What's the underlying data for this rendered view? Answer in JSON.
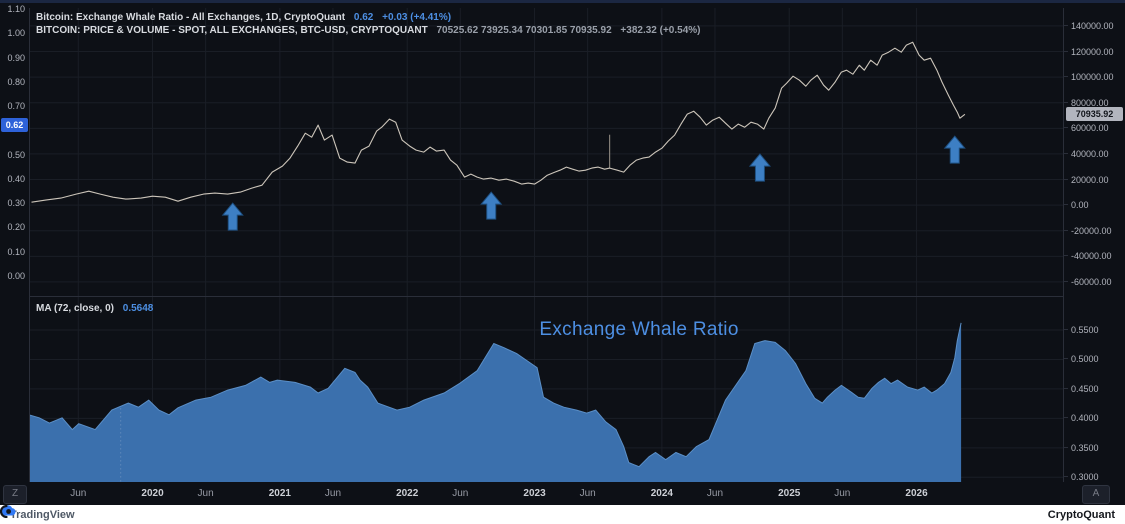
{
  "header": {
    "line1_symbol": "Bitcoin: Exchange Whale Ratio - All Exchanges, 1D, CryptoQuant",
    "line1_value": "0.62",
    "line1_change": "+0.03 (+4.41%)",
    "line2_symbol": "BITCOIN: PRICE & VOLUME - SPOT, ALL EXCHANGES, BTC-USD, CRYPTOQUANT",
    "line2_ohlc": "70525.62  73925.34  70301.85  70935.92",
    "line2_change": "+382.32 (+0.54%)"
  },
  "ma_legend": {
    "label": "MA (72, close, 0)",
    "value": "0.5648"
  },
  "pane2_title": "Exchange Whale Ratio",
  "badges": {
    "left_label": "0.62",
    "left_value": 0.62,
    "right_label": "70935.92",
    "right_value": 70935.92
  },
  "axes": {
    "left_ticks": [
      {
        "label": "1.10",
        "v": 1.1
      },
      {
        "label": "1.00",
        "v": 1.0
      },
      {
        "label": "0.90",
        "v": 0.9
      },
      {
        "label": "0.80",
        "v": 0.8
      },
      {
        "label": "0.70",
        "v": 0.7
      },
      {
        "label": "0.50",
        "v": 0.5
      },
      {
        "label": "0.40",
        "v": 0.4
      },
      {
        "label": "0.30",
        "v": 0.3
      },
      {
        "label": "0.20",
        "v": 0.2
      },
      {
        "label": "0.10",
        "v": 0.1
      },
      {
        "label": "0.00",
        "v": 0.0
      }
    ],
    "right_ticks_pane1": [
      {
        "label": "140000.00",
        "v": 140000
      },
      {
        "label": "120000.00",
        "v": 120000
      },
      {
        "label": "100000.00",
        "v": 100000
      },
      {
        "label": "80000.00",
        "v": 80000
      },
      {
        "label": "60000.00",
        "v": 60000
      },
      {
        "label": "40000.00",
        "v": 40000
      },
      {
        "label": "20000.00",
        "v": 20000
      },
      {
        "label": "0.00",
        "v": 0
      },
      {
        "label": "-20000.00",
        "v": -20000
      },
      {
        "label": "-40000.00",
        "v": -40000
      },
      {
        "label": "-60000.00",
        "v": -60000
      }
    ],
    "right_ticks_pane2": [
      {
        "label": "0.5500",
        "v": 0.55
      },
      {
        "label": "0.5000",
        "v": 0.5
      },
      {
        "label": "0.4500",
        "v": 0.45
      },
      {
        "label": "0.4000",
        "v": 0.4
      },
      {
        "label": "0.3500",
        "v": 0.35
      },
      {
        "label": "0.3000",
        "v": 0.3
      }
    ]
  },
  "time_axis": {
    "ticks": [
      {
        "label": "Jun",
        "x": 2019.417,
        "year": false
      },
      {
        "label": "2020",
        "x": 2020,
        "year": true
      },
      {
        "label": "Jun",
        "x": 2020.417,
        "year": false
      },
      {
        "label": "2021",
        "x": 2021,
        "year": true
      },
      {
        "label": "Jun",
        "x": 2021.417,
        "year": false
      },
      {
        "label": "2022",
        "x": 2022,
        "year": true
      },
      {
        "label": "Jun",
        "x": 2022.417,
        "year": false
      },
      {
        "label": "2023",
        "x": 2023,
        "year": true
      },
      {
        "label": "Jun",
        "x": 2023.417,
        "year": false
      },
      {
        "label": "2024",
        "x": 2024,
        "year": true
      },
      {
        "label": "Jun",
        "x": 2024.417,
        "year": false
      },
      {
        "label": "2025",
        "x": 2025,
        "year": true
      },
      {
        "label": "Jun",
        "x": 2025.417,
        "year": false
      },
      {
        "label": "2026",
        "x": 2026,
        "year": true
      }
    ]
  },
  "buttons": {
    "timezone_label": "Z",
    "scale_label": "A"
  },
  "footer": {
    "tradingview": "TradingView",
    "cryptoquant": "CryptoQuant"
  },
  "colors": {
    "background": "#0d1016",
    "grid": "#1a1e26",
    "axis_text": "#b2b5be",
    "accent_blue": "#4d8fe3",
    "area_blue": "#3b70ad",
    "price_line": "#ccc5ba",
    "badge_left_bg": "#2e62d9",
    "badge_right_bg": "#b2b5be",
    "arrow_blue": "#3d7fc4",
    "footer_bg": "#ffffff"
  },
  "chart_data": [
    {
      "type": "line",
      "title": "BITCOIN: PRICE & VOLUME - SPOT, ALL EXCHANGES, BTC-USD (1D close, USD)",
      "legend_position": "top-left",
      "grid": true,
      "x_range": [
        2019.03,
        2027.15
      ],
      "y_range": [
        -71000,
        154000
      ],
      "grid_y": [
        140000,
        120000,
        100000,
        80000,
        60000,
        40000,
        20000,
        0,
        -20000,
        -40000,
        -60000
      ],
      "last_value": 70935.92,
      "points": [
        [
          2019.05,
          2300
        ],
        [
          2019.16,
          3900
        ],
        [
          2019.28,
          5500
        ],
        [
          2019.4,
          8600
        ],
        [
          2019.5,
          10900
        ],
        [
          2019.59,
          8600
        ],
        [
          2019.69,
          6200
        ],
        [
          2019.79,
          4700
        ],
        [
          2019.91,
          5500
        ],
        [
          2020.0,
          7000
        ],
        [
          2020.1,
          6200
        ],
        [
          2020.2,
          3100
        ],
        [
          2020.3,
          6200
        ],
        [
          2020.4,
          8600
        ],
        [
          2020.49,
          9400
        ],
        [
          2020.59,
          8600
        ],
        [
          2020.69,
          10200
        ],
        [
          2020.78,
          13300
        ],
        [
          2020.86,
          15600
        ],
        [
          2020.94,
          25800
        ],
        [
          2021.02,
          30500
        ],
        [
          2021.08,
          36700
        ],
        [
          2021.14,
          46100
        ],
        [
          2021.2,
          56200
        ],
        [
          2021.25,
          53100
        ],
        [
          2021.3,
          62500
        ],
        [
          2021.35,
          50800
        ],
        [
          2021.41,
          54700
        ],
        [
          2021.47,
          36700
        ],
        [
          2021.53,
          33600
        ],
        [
          2021.59,
          32800
        ],
        [
          2021.64,
          43000
        ],
        [
          2021.7,
          46100
        ],
        [
          2021.76,
          57800
        ],
        [
          2021.8,
          60900
        ],
        [
          2021.86,
          67200
        ],
        [
          2021.91,
          64800
        ],
        [
          2021.96,
          50800
        ],
        [
          2022.02,
          46100
        ],
        [
          2022.07,
          43000
        ],
        [
          2022.13,
          41400
        ],
        [
          2022.18,
          45300
        ],
        [
          2022.23,
          42200
        ],
        [
          2022.29,
          43000
        ],
        [
          2022.34,
          35200
        ],
        [
          2022.39,
          31200
        ],
        [
          2022.45,
          21900
        ],
        [
          2022.5,
          24200
        ],
        [
          2022.55,
          21900
        ],
        [
          2022.6,
          20300
        ],
        [
          2022.66,
          21100
        ],
        [
          2022.72,
          19500
        ],
        [
          2022.78,
          20300
        ],
        [
          2022.84,
          18700
        ],
        [
          2022.9,
          16400
        ],
        [
          2022.95,
          17200
        ],
        [
          2023.0,
          16400
        ],
        [
          2023.05,
          19500
        ],
        [
          2023.1,
          23400
        ],
        [
          2023.16,
          25800
        ],
        [
          2023.2,
          27300
        ],
        [
          2023.25,
          29700
        ],
        [
          2023.3,
          28100
        ],
        [
          2023.35,
          26600
        ],
        [
          2023.4,
          27300
        ],
        [
          2023.45,
          28900
        ],
        [
          2023.5,
          29700
        ],
        [
          2023.55,
          28100
        ],
        [
          2023.59,
          28900
        ],
        [
          2023.65,
          27300
        ],
        [
          2023.7,
          25800
        ],
        [
          2023.75,
          31200
        ],
        [
          2023.8,
          35200
        ],
        [
          2023.85,
          36700
        ],
        [
          2023.9,
          37500
        ],
        [
          2023.95,
          41400
        ],
        [
          2024.0,
          44500
        ],
        [
          2024.05,
          50000
        ],
        [
          2024.1,
          54700
        ],
        [
          2024.15,
          63300
        ],
        [
          2024.2,
          71100
        ],
        [
          2024.25,
          73400
        ],
        [
          2024.3,
          68700
        ],
        [
          2024.35,
          62500
        ],
        [
          2024.4,
          66400
        ],
        [
          2024.45,
          68700
        ],
        [
          2024.5,
          64000
        ],
        [
          2024.55,
          59400
        ],
        [
          2024.6,
          63300
        ],
        [
          2024.65,
          60900
        ],
        [
          2024.7,
          64800
        ],
        [
          2024.75,
          63300
        ],
        [
          2024.8,
          59400
        ],
        [
          2024.84,
          67900
        ],
        [
          2024.89,
          75800
        ],
        [
          2024.94,
          91400
        ],
        [
          2024.98,
          95300
        ],
        [
          2025.03,
          100700
        ],
        [
          2025.08,
          97600
        ],
        [
          2025.13,
          92900
        ],
        [
          2025.17,
          97600
        ],
        [
          2025.22,
          101500
        ],
        [
          2025.27,
          93700
        ],
        [
          2025.31,
          89800
        ],
        [
          2025.36,
          96100
        ],
        [
          2025.41,
          103900
        ],
        [
          2025.45,
          105400
        ],
        [
          2025.5,
          102300
        ],
        [
          2025.55,
          109300
        ],
        [
          2025.59,
          105400
        ],
        [
          2025.64,
          113200
        ],
        [
          2025.69,
          109300
        ],
        [
          2025.73,
          117200
        ],
        [
          2025.78,
          119500
        ],
        [
          2025.83,
          122600
        ],
        [
          2025.88,
          119500
        ],
        [
          2025.92,
          125000
        ],
        [
          2025.97,
          127300
        ],
        [
          2026.02,
          117200
        ],
        [
          2026.06,
          113200
        ],
        [
          2026.11,
          114800
        ],
        [
          2026.16,
          105400
        ],
        [
          2026.2,
          96100
        ],
        [
          2026.25,
          85900
        ],
        [
          2026.29,
          78100
        ],
        [
          2026.32,
          72600
        ],
        [
          2026.34,
          67900
        ],
        [
          2026.38,
          70936
        ]
      ],
      "wick": {
        "x": 2023.59,
        "from": 28900,
        "to": 55000
      },
      "arrows": [
        {
          "x": 2020.63,
          "y": 4700
        },
        {
          "x": 2022.66,
          "y": 13300
        },
        {
          "x": 2024.77,
          "y": 43000
        },
        {
          "x": 2026.3,
          "y": 57000
        }
      ]
    },
    {
      "type": "area",
      "title": "Exchange Whale Ratio - MA (72, close, 0)",
      "grid": true,
      "x_range": [
        2019.03,
        2027.15
      ],
      "y_range": [
        0.292,
        0.606
      ],
      "grid_y": [
        0.55,
        0.5,
        0.45,
        0.4,
        0.35,
        0.3
      ],
      "last_value": 0.5648,
      "points": [
        [
          2019.03,
          0.406
        ],
        [
          2019.11,
          0.401
        ],
        [
          2019.19,
          0.392
        ],
        [
          2019.29,
          0.401
        ],
        [
          2019.37,
          0.381
        ],
        [
          2019.42,
          0.391
        ],
        [
          2019.55,
          0.381
        ],
        [
          2019.68,
          0.414
        ],
        [
          2019.81,
          0.426
        ],
        [
          2019.89,
          0.419
        ],
        [
          2019.97,
          0.431
        ],
        [
          2020.05,
          0.414
        ],
        [
          2020.13,
          0.406
        ],
        [
          2020.2,
          0.418
        ],
        [
          2020.34,
          0.431
        ],
        [
          2020.46,
          0.436
        ],
        [
          2020.59,
          0.448
        ],
        [
          2020.73,
          0.456
        ],
        [
          2020.85,
          0.47
        ],
        [
          2020.92,
          0.461
        ],
        [
          2020.98,
          0.465
        ],
        [
          2021.12,
          0.461
        ],
        [
          2021.24,
          0.453
        ],
        [
          2021.3,
          0.443
        ],
        [
          2021.38,
          0.451
        ],
        [
          2021.51,
          0.485
        ],
        [
          2021.59,
          0.478
        ],
        [
          2021.63,
          0.465
        ],
        [
          2021.69,
          0.453
        ],
        [
          2021.77,
          0.426
        ],
        [
          2021.92,
          0.414
        ],
        [
          2022.02,
          0.419
        ],
        [
          2022.13,
          0.431
        ],
        [
          2022.29,
          0.443
        ],
        [
          2022.41,
          0.459
        ],
        [
          2022.55,
          0.481
        ],
        [
          2022.68,
          0.527
        ],
        [
          2022.76,
          0.52
        ],
        [
          2022.86,
          0.51
        ],
        [
          2022.94,
          0.498
        ],
        [
          2023.02,
          0.486
        ],
        [
          2023.07,
          0.436
        ],
        [
          2023.15,
          0.426
        ],
        [
          2023.23,
          0.419
        ],
        [
          2023.33,
          0.414
        ],
        [
          2023.41,
          0.409
        ],
        [
          2023.48,
          0.414
        ],
        [
          2023.56,
          0.394
        ],
        [
          2023.64,
          0.381
        ],
        [
          2023.7,
          0.352
        ],
        [
          2023.74,
          0.325
        ],
        [
          2023.82,
          0.318
        ],
        [
          2023.9,
          0.335
        ],
        [
          2023.95,
          0.342
        ],
        [
          2024.03,
          0.33
        ],
        [
          2024.11,
          0.342
        ],
        [
          2024.19,
          0.335
        ],
        [
          2024.27,
          0.352
        ],
        [
          2024.37,
          0.364
        ],
        [
          2024.5,
          0.431
        ],
        [
          2024.66,
          0.481
        ],
        [
          2024.73,
          0.527
        ],
        [
          2024.81,
          0.532
        ],
        [
          2024.89,
          0.529
        ],
        [
          2024.97,
          0.515
        ],
        [
          2025.05,
          0.493
        ],
        [
          2025.13,
          0.459
        ],
        [
          2025.2,
          0.434
        ],
        [
          2025.26,
          0.426
        ],
        [
          2025.3,
          0.436
        ],
        [
          2025.36,
          0.448
        ],
        [
          2025.41,
          0.456
        ],
        [
          2025.49,
          0.444
        ],
        [
          2025.54,
          0.436
        ],
        [
          2025.59,
          0.434
        ],
        [
          2025.65,
          0.451
        ],
        [
          2025.7,
          0.461
        ],
        [
          2025.75,
          0.468
        ],
        [
          2025.8,
          0.459
        ],
        [
          2025.85,
          0.465
        ],
        [
          2025.93,
          0.453
        ],
        [
          2026.01,
          0.448
        ],
        [
          2026.06,
          0.453
        ],
        [
          2026.12,
          0.443
        ],
        [
          2026.16,
          0.448
        ],
        [
          2026.22,
          0.459
        ],
        [
          2026.27,
          0.478
        ],
        [
          2026.3,
          0.503
        ],
        [
          2026.32,
          0.532
        ],
        [
          2026.35,
          0.562
        ]
      ],
      "dotted_marker": {
        "x": 2019.75,
        "from": 0.417
      }
    }
  ]
}
